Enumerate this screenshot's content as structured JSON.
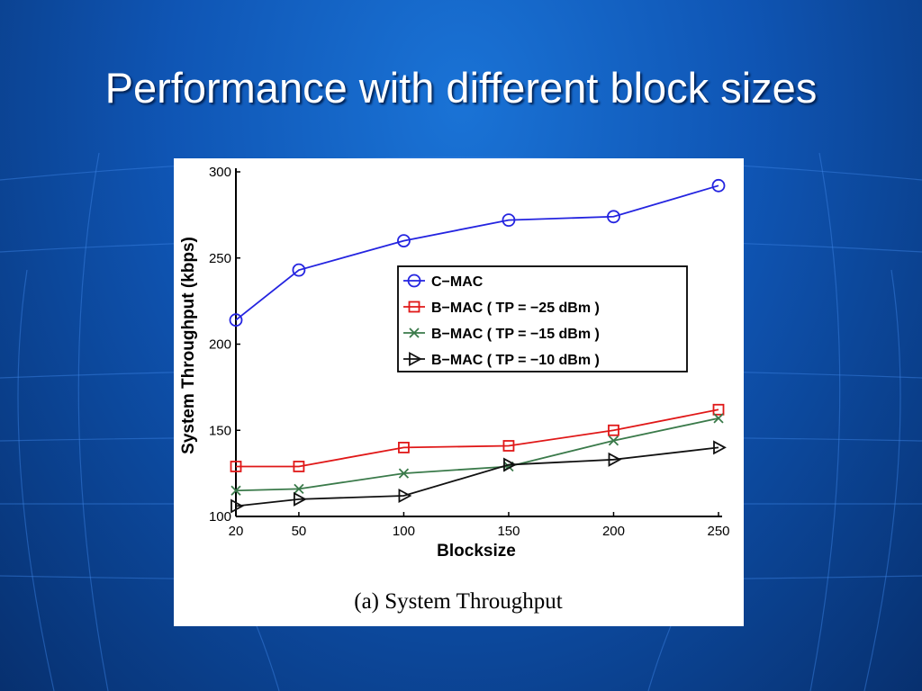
{
  "slide": {
    "title": "Performance with different block sizes"
  },
  "figure": {
    "caption": "(a) System Throughput"
  },
  "colors": {
    "background": "#0f55b4",
    "c_mac": "#2424e0",
    "b_mac_25": "#e01818",
    "b_mac_15": "#3a7a4a",
    "b_mac_10": "#111111"
  },
  "chart_data": {
    "type": "line",
    "xlabel": "Blocksize",
    "ylabel": "System Throughput (kbps)",
    "x": [
      20,
      50,
      100,
      150,
      200,
      250
    ],
    "x_tick_labels": [
      "20",
      "50",
      "100",
      "150",
      "200",
      "250"
    ],
    "y_tick_labels": [
      "100",
      "150",
      "200",
      "250",
      "300"
    ],
    "y_ticks": [
      100,
      150,
      200,
      250,
      300
    ],
    "xlim": [
      20,
      250
    ],
    "ylim": [
      100,
      300
    ],
    "grid": false,
    "legend_position": "upper-right-center",
    "series": [
      {
        "name": "C−MAC",
        "marker": "circle",
        "color": "#2424e0",
        "values": [
          214,
          243,
          260,
          272,
          274,
          292
        ]
      },
      {
        "name": "B−MAC  ( TP = −25 dBm )",
        "marker": "square",
        "color": "#e01818",
        "values": [
          129,
          129,
          140,
          141,
          150,
          162
        ]
      },
      {
        "name": "B−MAC  ( TP = −15 dBm )",
        "marker": "x",
        "color": "#3a7a4a",
        "values": [
          115,
          116,
          125,
          129,
          144,
          157
        ]
      },
      {
        "name": "B−MAC  ( TP = −10 dBm )",
        "marker": "triangle-right",
        "color": "#111111",
        "values": [
          106,
          110,
          112,
          130,
          133,
          140
        ]
      }
    ]
  }
}
